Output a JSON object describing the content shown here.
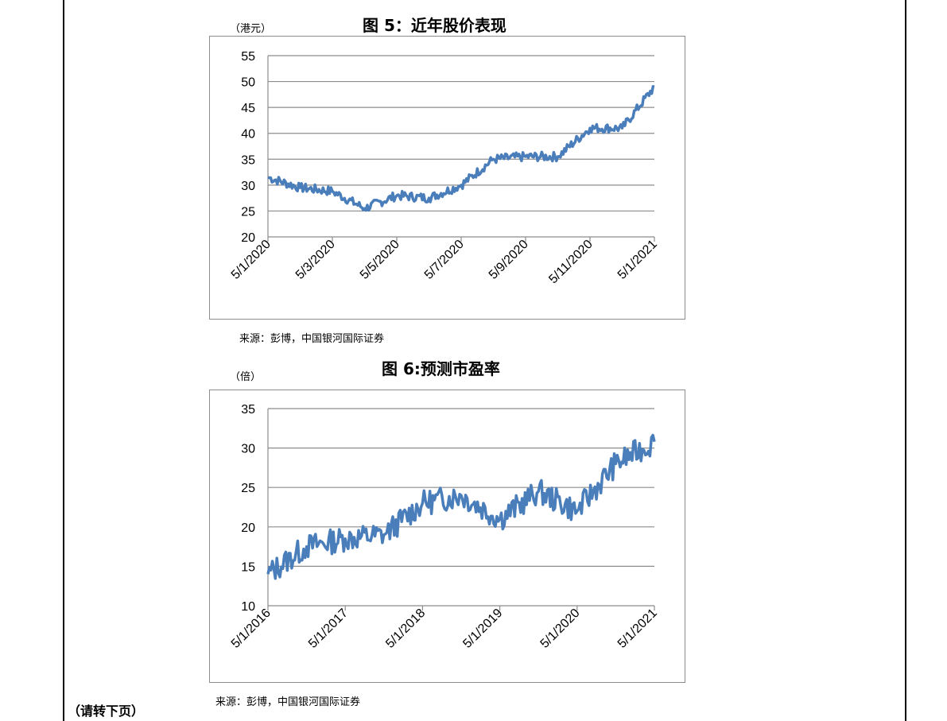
{
  "figures": [
    {
      "title": "图 5：近年股价表现",
      "unit": "（港元）",
      "source": "来源：彭博，中国银河国际证券",
      "chart_data": {
        "type": "line",
        "series_color": "#4a7ebb",
        "ylim": [
          20,
          55
        ],
        "yticks": [
          20,
          25,
          30,
          35,
          40,
          45,
          50,
          55
        ],
        "xticks": [
          "5/1/2020",
          "5/3/2020",
          "5/5/2020",
          "5/7/2020",
          "5/9/2020",
          "5/11/2020",
          "5/1/2021"
        ],
        "grid": true,
        "x": [
          "5/1/2020",
          "5/2/2020",
          "5/3/2020",
          "5/4/2020",
          "5/5/2020",
          "5/6/2020",
          "5/7/2020",
          "5/8/2020",
          "5/9/2020",
          "5/10/2020",
          "5/11/2020",
          "5/12/2020",
          "5/1/2021"
        ],
        "values": [
          31.5,
          29.5,
          28.8,
          25.5,
          28.0,
          27.5,
          30.0,
          35.0,
          35.5,
          35.5,
          41.0,
          41.0,
          49.0
        ]
      }
    },
    {
      "title": "图 6:预测市盈率",
      "unit": "（倍）",
      "source": "来源：彭博，中国银河国际证券",
      "chart_data": {
        "type": "line",
        "series_color": "#4a7ebb",
        "ylim": [
          10,
          35
        ],
        "yticks": [
          10,
          15,
          20,
          25,
          30,
          35
        ],
        "xticks": [
          "5/1/2016",
          "5/1/2017",
          "5/1/2018",
          "5/1/2019",
          "5/1/2020",
          "5/1/2021"
        ],
        "grid": true,
        "x": [
          "5/1/2016",
          "11/1/2016",
          "5/1/2017",
          "11/1/2017",
          "5/1/2018",
          "11/1/2018",
          "5/1/2019",
          "11/1/2019",
          "5/1/2020",
          "11/1/2020",
          "5/1/2021"
        ],
        "values": [
          14.0,
          17.5,
          18.5,
          19.0,
          23.0,
          24.0,
          21.0,
          24.5,
          22.0,
          28.0,
          30.8
        ]
      }
    }
  ],
  "footer": "（请转下页）"
}
